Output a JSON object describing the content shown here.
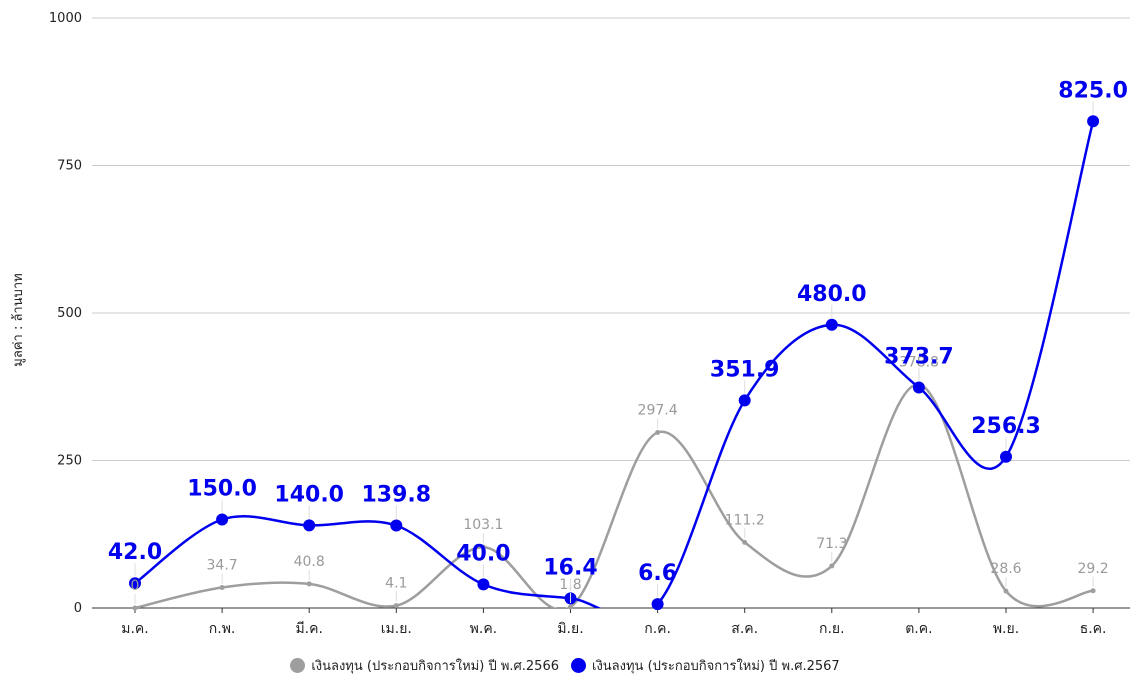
{
  "chart_data": {
    "type": "line",
    "categories": [
      "ม.ค.",
      "ก.พ.",
      "มี.ค.",
      "เม.ย.",
      "พ.ค.",
      "มิ.ย.",
      "ก.ค.",
      "ส.ค.",
      "ก.ย.",
      "ต.ค.",
      "พ.ย.",
      "ธ.ค."
    ],
    "series": [
      {
        "name": "เงินลงทุน (ประกอบกิจการใหม่) ปี พ.ศ.2566",
        "color": "#9e9e9e",
        "values": [
          0,
          34.7,
          40.8,
          4.1,
          103.1,
          1.8,
          297.4,
          111.2,
          71.3,
          378.8,
          28.6,
          29.2
        ],
        "labels": [
          "0",
          "34.7",
          "40.8",
          "4.1",
          "103.1",
          "1.8",
          "297.4",
          "111.2",
          "71.3",
          "378.8",
          "28.6",
          "29.2"
        ]
      },
      {
        "name": "เงินลงทุน (ประกอบกิจการใหม่) ปี พ.ศ.2567",
        "color": "#0000ee",
        "values": [
          42.0,
          150.0,
          140.0,
          139.8,
          40.0,
          16.4,
          6.6,
          351.9,
          480.0,
          373.7,
          256.3,
          825.0
        ],
        "labels": [
          "42.0",
          "150.0",
          "140.0",
          "139.8",
          "40.0",
          "16.4",
          "6.6",
          "351.9",
          "480.0",
          "373.7",
          "256.3",
          "825.0"
        ]
      }
    ],
    "ylabel": "มูลค่า : ล้านบาท",
    "xlabel": "",
    "ylim": [
      0,
      1000
    ],
    "yticks": [
      "0",
      "250",
      "500",
      "750",
      "1000"
    ],
    "grid": true,
    "legend_position": "bottom"
  }
}
